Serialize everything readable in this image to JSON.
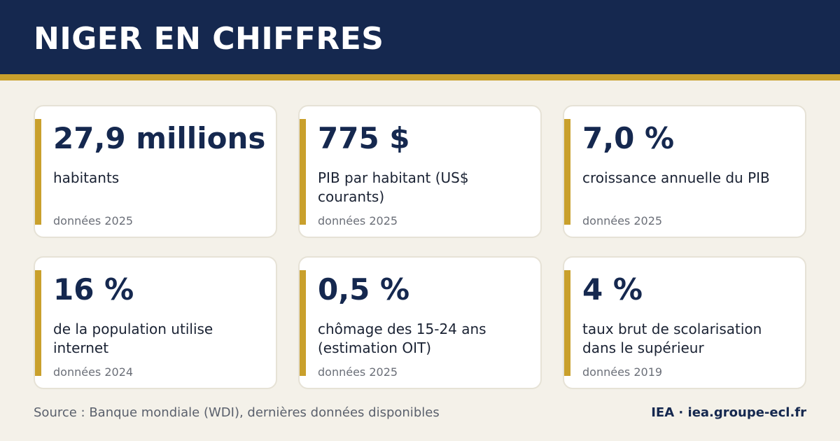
{
  "header": {
    "title": "NIGER EN CHIFFRES"
  },
  "colors": {
    "navy": "#15284f",
    "gold": "#c9a02c",
    "background": "#f4f1e9",
    "card": "#ffffff"
  },
  "cards": [
    {
      "value": "27,9 millions",
      "label": "habitants",
      "year": "données 2025"
    },
    {
      "value": "775 $",
      "label": "PIB par habitant (US$ courants)",
      "year": "données 2025"
    },
    {
      "value": "7,0 %",
      "label": "croissance annuelle du PIB",
      "year": "données 2025"
    },
    {
      "value": "16 %",
      "label": "de la population utilise internet",
      "year": "données 2024"
    },
    {
      "value": "0,5 %",
      "label": "chômage des 15-24 ans (estimation OIT)",
      "year": "données 2025"
    },
    {
      "value": "4 %",
      "label": "taux brut de scolarisation dans le supérieur",
      "year": "données 2019"
    }
  ],
  "footer": {
    "source": "Source : Banque mondiale (WDI), dernières données disponibles",
    "brand": "IEA · iea.groupe-ecl.fr"
  }
}
